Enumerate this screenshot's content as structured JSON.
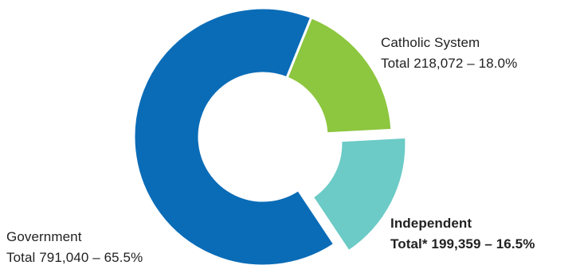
{
  "chart_data": {
    "type": "pie",
    "variant": "donut",
    "title": "",
    "slices": [
      {
        "name": "Catholic System",
        "total_label": "Total 218,072 – 18.0%",
        "value": 218072,
        "percent": 18.0,
        "color": "#8DC63F",
        "exploded": false,
        "label_bold": false
      },
      {
        "name": "Independent",
        "total_label": "Total* 199,359 – 16.5%",
        "value": 199359,
        "percent": 16.5,
        "color": "#6CCBC6",
        "exploded": true,
        "label_bold": true
      },
      {
        "name": "Government",
        "total_label": "Total 791,040 – 65.5%",
        "value": 791040,
        "percent": 65.5,
        "color": "#0A6CB7",
        "exploded": false,
        "label_bold": false
      }
    ]
  }
}
